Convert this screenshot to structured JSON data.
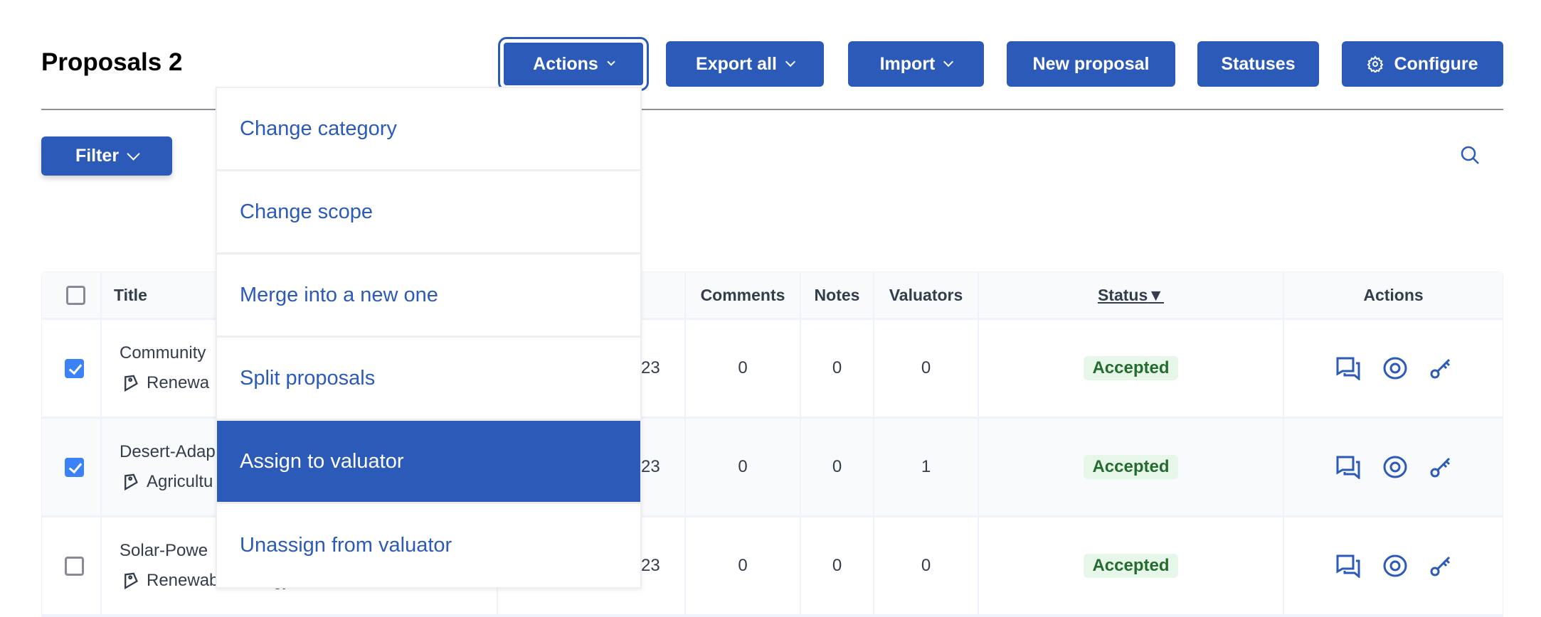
{
  "header": {
    "title": "Proposals 2"
  },
  "toolbar": {
    "actions": "Actions",
    "export_all": "Export all",
    "import": "Import",
    "new_proposal": "New proposal",
    "statuses": "Statuses",
    "configure": "Configure"
  },
  "filter": {
    "label": "Filter"
  },
  "dropdown": {
    "items": [
      "Change category",
      "Change scope",
      "Merge into a new one",
      "Split proposals",
      "Assign to valuator",
      "Unassign from valuator"
    ],
    "selected": "Assign to valuator"
  },
  "table": {
    "headers": {
      "title": "Title",
      "comments": "Comments",
      "notes": "Notes",
      "valuators": "Valuators",
      "status": "Status",
      "actions": "Actions"
    },
    "rows": [
      {
        "checked": true,
        "title": "Community",
        "category": "Renewa",
        "date": "23",
        "comments": "0",
        "notes": "0",
        "valuators": "0",
        "status": "Accepted"
      },
      {
        "checked": true,
        "title": "Desert-Adap",
        "category": "Agricultu",
        "date": "23",
        "comments": "0",
        "notes": "0",
        "valuators": "1",
        "status": "Accepted"
      },
      {
        "checked": false,
        "title": "Solar-Powe",
        "category": "Renewable Energy",
        "date": "23",
        "comments": "0",
        "notes": "0",
        "valuators": "0",
        "status": "Accepted"
      }
    ]
  },
  "colors": {
    "primary": "#2c5ab8",
    "checkbox": "#3b82f6",
    "accepted_bg": "#e6f7e9",
    "accepted_text": "#256b2e"
  },
  "icons": [
    "chevron-down-icon",
    "gear-icon",
    "search-icon",
    "tag-icon",
    "comments-icon",
    "eye-icon",
    "key-icon",
    "sort-down-icon"
  ]
}
